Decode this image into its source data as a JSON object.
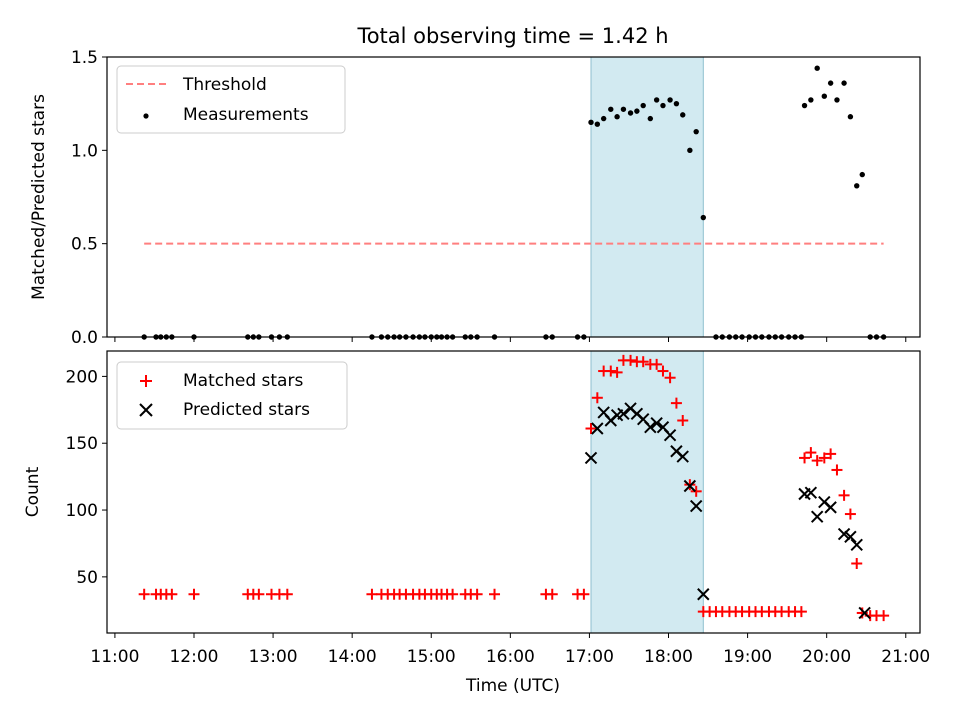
{
  "figure": {
    "title": "Total observing time = 1.42 h",
    "xlabel": "Time (UTC)",
    "shade_color": "#add8e6",
    "x_ticks": [
      "11:00",
      "12:00",
      "13:00",
      "14:00",
      "15:00",
      "16:00",
      "17:00",
      "18:00",
      "19:00",
      "20:00",
      "21:00"
    ]
  },
  "chart_data": [
    {
      "type": "scatter",
      "panel": "top",
      "ylabel": "Matched/Predicted stars",
      "ylim": [
        0,
        1.5
      ],
      "y_ticks": [
        "0.0",
        "0.5",
        "1.0",
        "1.5"
      ],
      "xlim": [
        10.9,
        21.18
      ],
      "shaded_interval": [
        17.02,
        18.44
      ],
      "legend": {
        "placement": "upper left",
        "entries": [
          "Threshold",
          "Measurements"
        ]
      },
      "threshold": {
        "name": "Threshold",
        "y": 0.5,
        "x_range": [
          11.37,
          20.72
        ],
        "color": "#ff7f7f",
        "style": "dashed"
      },
      "series": [
        {
          "name": "Measurements",
          "color": "#000000",
          "marker": "dot",
          "x": [
            11.37,
            11.52,
            11.58,
            11.65,
            11.72,
            12.0,
            12.68,
            12.75,
            12.82,
            12.98,
            13.08,
            13.18,
            14.25,
            14.37,
            14.45,
            14.53,
            14.6,
            14.68,
            14.77,
            14.85,
            14.92,
            15.0,
            15.07,
            15.13,
            15.2,
            15.27,
            15.43,
            15.5,
            15.58,
            15.8,
            16.45,
            16.53,
            16.85,
            16.93,
            17.02,
            17.1,
            17.18,
            17.27,
            17.35,
            17.43,
            17.52,
            17.6,
            17.68,
            17.77,
            17.85,
            17.93,
            18.02,
            18.1,
            18.18,
            18.27,
            18.35,
            18.44,
            18.6,
            18.68,
            18.77,
            18.85,
            18.93,
            19.02,
            19.1,
            19.18,
            19.27,
            19.35,
            19.43,
            19.52,
            19.6,
            19.68,
            19.72,
            19.8,
            19.88,
            19.97,
            20.05,
            20.13,
            20.22,
            20.3,
            20.38,
            20.45,
            20.55,
            20.63,
            20.72
          ],
          "y": [
            0,
            0,
            0,
            0,
            0,
            0,
            0,
            0,
            0,
            0,
            0,
            0,
            0,
            0,
            0,
            0,
            0,
            0,
            0,
            0,
            0,
            0,
            0,
            0,
            0,
            0,
            0,
            0,
            0,
            0,
            0,
            0,
            0,
            0,
            1.15,
            1.14,
            1.17,
            1.22,
            1.18,
            1.22,
            1.2,
            1.21,
            1.24,
            1.17,
            1.27,
            1.24,
            1.27,
            1.25,
            1.19,
            1.0,
            1.1,
            0.64,
            0,
            0,
            0,
            0,
            0,
            0,
            0,
            0,
            0,
            0,
            0,
            0,
            0,
            0,
            1.24,
            1.27,
            1.44,
            1.29,
            1.36,
            1.27,
            1.36,
            1.18,
            0.81,
            0.87,
            0,
            0,
            0
          ]
        }
      ]
    },
    {
      "type": "scatter",
      "panel": "bottom",
      "ylabel": "Count",
      "ylim": [
        8,
        219
      ],
      "y_ticks": [
        "50",
        "100",
        "150",
        "200"
      ],
      "y_tick_values": [
        50,
        100,
        150,
        200
      ],
      "xlim": [
        10.9,
        21.18
      ],
      "shaded_interval": [
        17.02,
        18.44
      ],
      "legend": {
        "placement": "upper left",
        "entries": [
          "Matched stars",
          "Predicted stars"
        ]
      },
      "series": [
        {
          "name": "Matched stars",
          "color": "#ff0000",
          "marker": "plus",
          "x": [
            11.37,
            11.52,
            11.58,
            11.65,
            11.72,
            12.0,
            12.68,
            12.75,
            12.82,
            12.98,
            13.08,
            13.18,
            14.25,
            14.37,
            14.45,
            14.53,
            14.6,
            14.68,
            14.77,
            14.85,
            14.92,
            15.0,
            15.07,
            15.13,
            15.2,
            15.27,
            15.43,
            15.5,
            15.58,
            15.8,
            16.45,
            16.53,
            16.85,
            16.93,
            17.02,
            17.1,
            17.18,
            17.27,
            17.35,
            17.43,
            17.52,
            17.6,
            17.68,
            17.77,
            17.85,
            17.93,
            18.02,
            18.1,
            18.18,
            18.27,
            18.35,
            18.44,
            18.52,
            18.6,
            18.68,
            18.77,
            18.85,
            18.93,
            19.02,
            19.1,
            19.18,
            19.27,
            19.35,
            19.43,
            19.52,
            19.6,
            19.68,
            19.72,
            19.8,
            19.88,
            19.97,
            20.05,
            20.13,
            20.22,
            20.3,
            20.38,
            20.45,
            20.55,
            20.63,
            20.72
          ],
          "y": [
            37,
            37,
            37,
            37,
            37,
            37,
            37,
            37,
            37,
            37,
            37,
            37,
            37,
            37,
            37,
            37,
            37,
            37,
            37,
            37,
            37,
            37,
            37,
            37,
            37,
            37,
            37,
            37,
            37,
            37,
            37,
            37,
            37,
            37,
            161,
            184,
            204,
            204,
            203,
            212,
            212,
            211,
            211,
            209,
            209,
            204,
            199,
            180,
            167,
            119,
            114,
            24,
            24,
            24,
            24,
            24,
            24,
            24,
            24,
            24,
            24,
            24,
            24,
            24,
            24,
            24,
            24,
            139,
            143,
            137,
            139,
            142,
            130,
            111,
            97,
            60,
            23,
            21,
            21,
            21
          ]
        },
        {
          "name": "Predicted stars",
          "color": "#000000",
          "marker": "cross",
          "x": [
            17.02,
            17.1,
            17.18,
            17.27,
            17.35,
            17.43,
            17.52,
            17.6,
            17.68,
            17.77,
            17.85,
            17.93,
            18.02,
            18.1,
            18.18,
            18.27,
            18.35,
            18.44,
            19.72,
            19.8,
            19.88,
            19.97,
            20.05,
            20.22,
            20.3,
            20.38,
            20.48
          ],
          "y": [
            139,
            161,
            173,
            167,
            171,
            172,
            176,
            172,
            168,
            162,
            165,
            162,
            156,
            144,
            140,
            118,
            103,
            37,
            112,
            113,
            95,
            106,
            102,
            82,
            80,
            74,
            23
          ]
        }
      ]
    }
  ]
}
